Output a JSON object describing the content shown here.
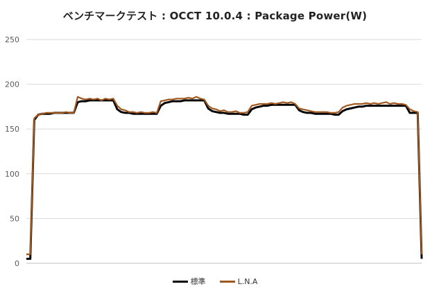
{
  "chart_data": {
    "type": "line",
    "title": "ベンチマークテスト : OCCT 10.0.4 : Package Power(W)",
    "xlabel": "",
    "ylabel": "",
    "ylim": [
      0,
      250
    ],
    "yticks": [
      0,
      50,
      100,
      150,
      200,
      250
    ],
    "grid": true,
    "legend": "bottom",
    "x": [
      0,
      1,
      2,
      3,
      4,
      5,
      6,
      7,
      8,
      9,
      10,
      11,
      12,
      13,
      14,
      15,
      16,
      17,
      18,
      19,
      20,
      21,
      22,
      23,
      24,
      25,
      26,
      27,
      28,
      29,
      30,
      31,
      32,
      33,
      34,
      35,
      36,
      37,
      38,
      39,
      40,
      41,
      42,
      43,
      44,
      45,
      46,
      47,
      48,
      49,
      50,
      51,
      52,
      53,
      54,
      55,
      56,
      57,
      58,
      59,
      60,
      61,
      62,
      63,
      64,
      65,
      66,
      67,
      68,
      69,
      70,
      71,
      72,
      73,
      74,
      75,
      76,
      77,
      78,
      79,
      80,
      81,
      82,
      83,
      84,
      85,
      86,
      87,
      88,
      89,
      90,
      91,
      92,
      93,
      94,
      95,
      96,
      97,
      98,
      99,
      100
    ],
    "series": [
      {
        "name": "標準",
        "color": "#000000",
        "values": [
          5,
          5,
          160,
          166,
          167,
          167,
          167,
          168,
          168,
          168,
          168,
          168,
          168,
          180,
          181,
          181,
          182,
          182,
          182,
          182,
          182,
          182,
          182,
          172,
          169,
          168,
          168,
          167,
          167,
          167,
          167,
          167,
          167,
          167,
          176,
          179,
          180,
          181,
          181,
          181,
          182,
          182,
          182,
          182,
          182,
          182,
          173,
          170,
          169,
          168,
          168,
          167,
          167,
          167,
          167,
          166,
          166,
          172,
          174,
          175,
          176,
          176,
          177,
          177,
          177,
          177,
          177,
          177,
          177,
          171,
          169,
          168,
          168,
          167,
          167,
          167,
          167,
          167,
          166,
          166,
          170,
          172,
          173,
          174,
          175,
          175,
          176,
          176,
          176,
          176,
          176,
          176,
          176,
          176,
          176,
          176,
          176,
          168,
          168,
          168,
          5
        ]
      },
      {
        "name": "L.N.A",
        "color": "#a0571e",
        "values": [
          10,
          10,
          162,
          166,
          167,
          168,
          168,
          168,
          168,
          168,
          169,
          168,
          168,
          186,
          184,
          183,
          184,
          183,
          184,
          182,
          184,
          183,
          184,
          176,
          172,
          171,
          169,
          169,
          168,
          169,
          168,
          168,
          169,
          168,
          181,
          182,
          183,
          183,
          184,
          184,
          184,
          185,
          184,
          186,
          184,
          183,
          176,
          173,
          172,
          170,
          171,
          169,
          169,
          170,
          168,
          168,
          169,
          176,
          177,
          178,
          178,
          178,
          179,
          178,
          179,
          180,
          179,
          180,
          178,
          173,
          172,
          171,
          170,
          169,
          169,
          169,
          169,
          168,
          168,
          169,
          174,
          176,
          177,
          178,
          178,
          178,
          179,
          178,
          179,
          178,
          179,
          180,
          178,
          179,
          178,
          178,
          177,
          172,
          170,
          169,
          10
        ]
      }
    ]
  }
}
